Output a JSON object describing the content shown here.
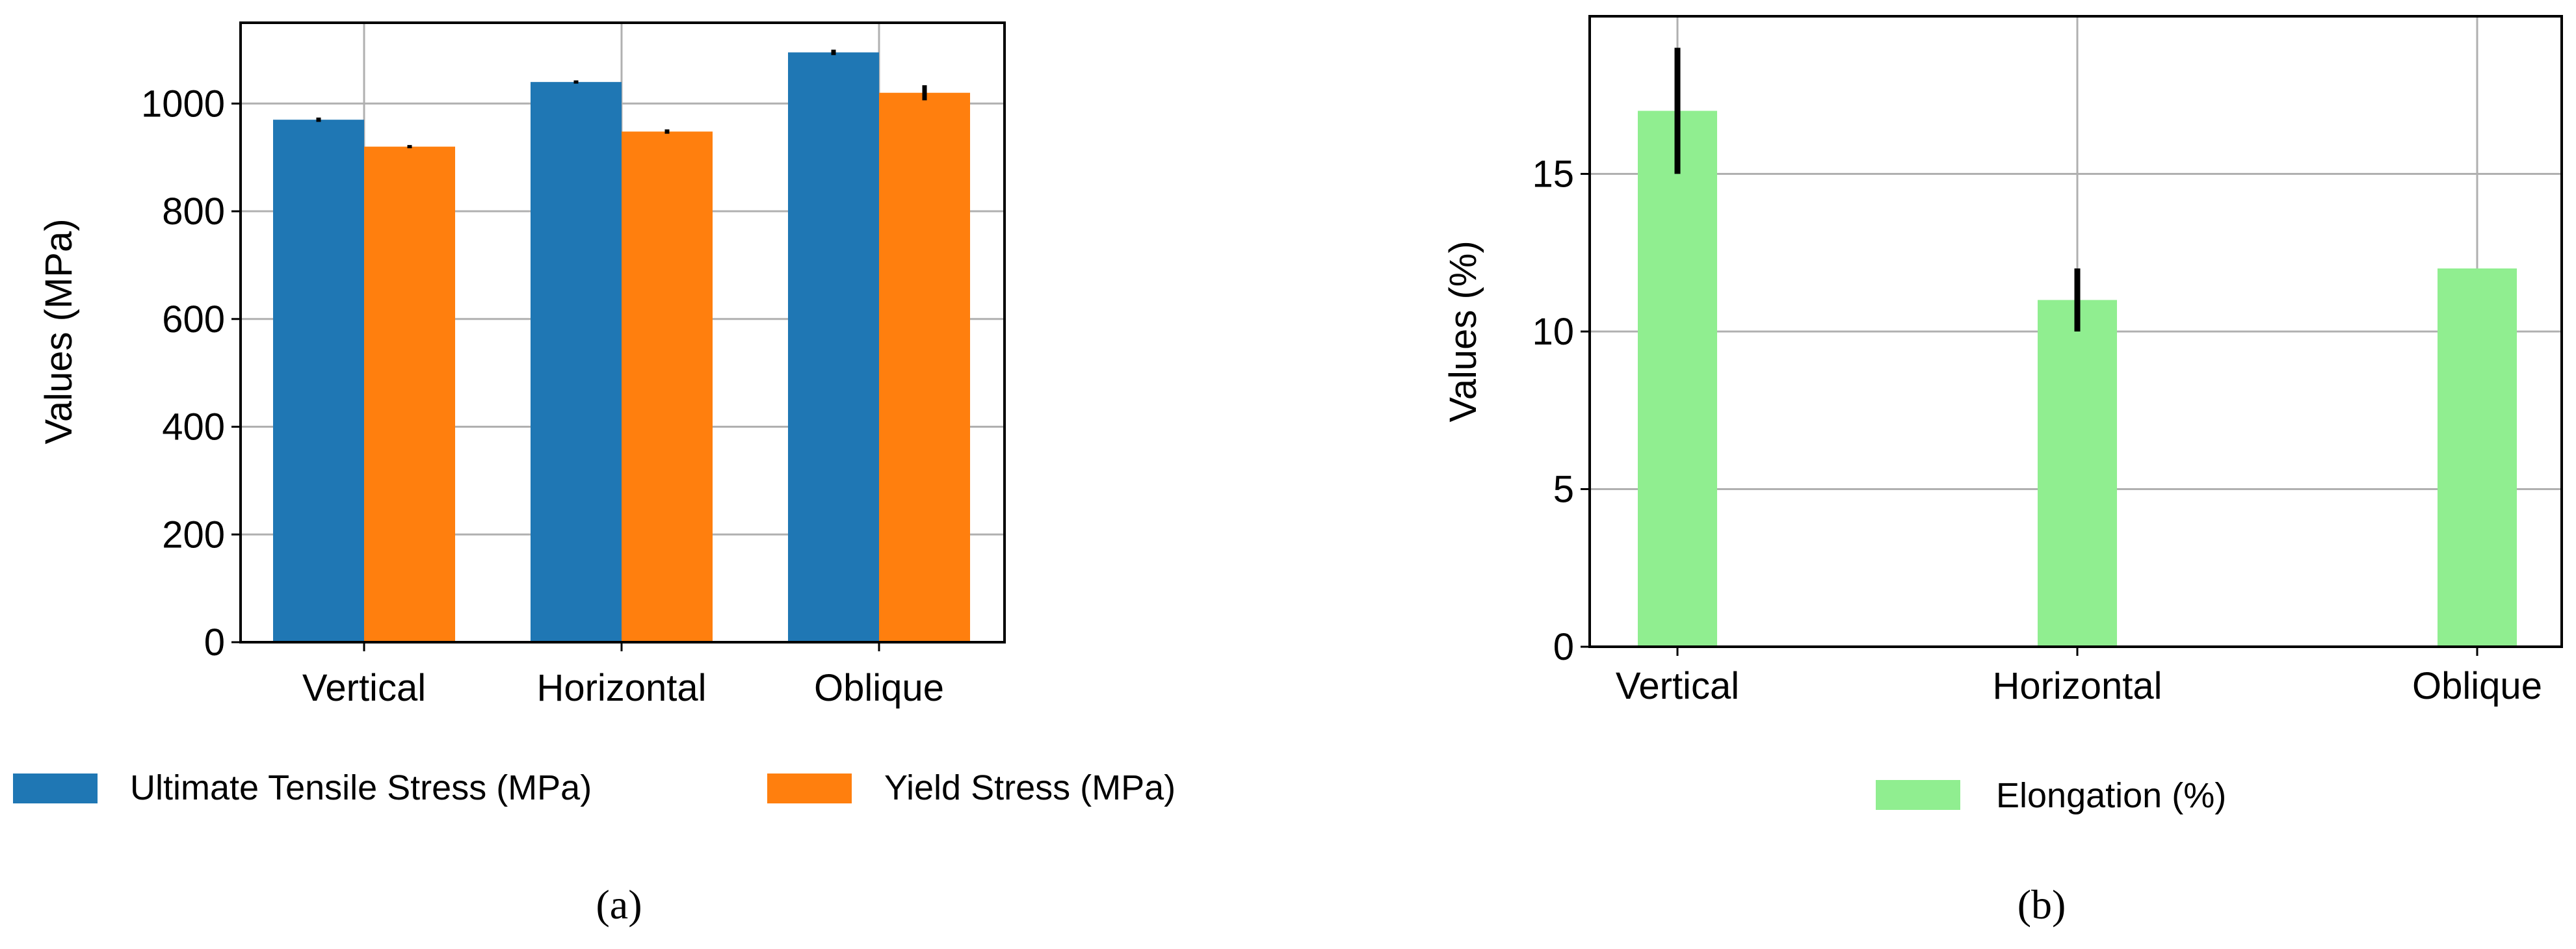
{
  "chart_data": [
    {
      "type": "bar",
      "panel_label": "(a)",
      "categories": [
        "Vertical",
        "Horizontal",
        "Oblique"
      ],
      "series": [
        {
          "name": "Ultimate Tensile Stress (MPa)",
          "color": "#1f77b4",
          "values": [
            970,
            1040,
            1095
          ],
          "errors": [
            4,
            3,
            5
          ]
        },
        {
          "name": "Yield Stress (MPa)",
          "color": "#ff7f0e",
          "values": [
            920,
            948,
            1020
          ],
          "errors": [
            3,
            4,
            14
          ]
        }
      ],
      "ylabel": "Values (MPa)",
      "ylim": [
        0,
        1150
      ],
      "yticks": [
        "0",
        "200",
        "400",
        "600",
        "800",
        "1000"
      ],
      "grid": true,
      "legend": "below"
    },
    {
      "type": "bar",
      "panel_label": "(b)",
      "categories": [
        "Vertical",
        "Horizontal",
        "Oblique"
      ],
      "series": [
        {
          "name": "Elongation (%)",
          "color": "#90ee90",
          "values": [
            17,
            11,
            12
          ],
          "errors": [
            2,
            1,
            0
          ]
        }
      ],
      "ylabel": "Values (%)",
      "ylim": [
        0,
        20
      ],
      "yticks": [
        "0",
        "5",
        "10",
        "15"
      ],
      "grid": true,
      "legend": "below"
    }
  ]
}
